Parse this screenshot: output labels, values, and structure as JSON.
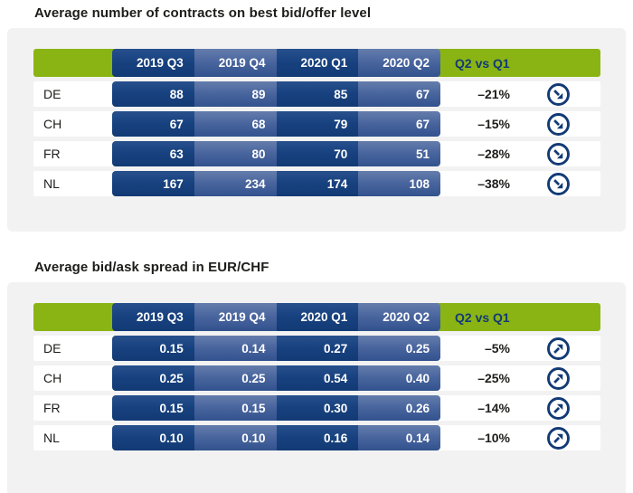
{
  "colors": {
    "accent_green": "#8ab414",
    "navy": "#123a75",
    "cell_dark_top": "#27508d",
    "cell_dark_bottom": "#123a75",
    "cell_light_top": "#647dac",
    "cell_light_bottom": "#32528e",
    "card_background": "#f2f2f2",
    "row_background": "#ffffff",
    "text": "#1d1d1b"
  },
  "chart_data": [
    {
      "type": "table",
      "title": "Average number of contracts on best bid/offer level",
      "columns": [
        "2019 Q3",
        "2019 Q4",
        "2020 Q1",
        "2020 Q2"
      ],
      "compare_label": "Q2 vs Q1",
      "rows": [
        {
          "label": "DE",
          "values": [
            "88",
            "89",
            "85",
            "67"
          ],
          "change": "–21%",
          "trend": "down-right"
        },
        {
          "label": "CH",
          "values": [
            "67",
            "68",
            "79",
            "67"
          ],
          "change": "–15%",
          "trend": "down-right"
        },
        {
          "label": "FR",
          "values": [
            "63",
            "80",
            "70",
            "51"
          ],
          "change": "–28%",
          "trend": "down-right"
        },
        {
          "label": "NL",
          "values": [
            "167",
            "234",
            "174",
            "108"
          ],
          "change": "–38%",
          "trend": "down-right"
        }
      ]
    },
    {
      "type": "table",
      "title": "Average bid/ask spread in EUR/CHF",
      "columns": [
        "2019 Q3",
        "2019 Q4",
        "2020 Q1",
        "2020 Q2"
      ],
      "compare_label": "Q2 vs Q1",
      "rows": [
        {
          "label": "DE",
          "values": [
            "0.15",
            "0.14",
            "0.27",
            "0.25"
          ],
          "change": "–5%",
          "trend": "up-right"
        },
        {
          "label": "CH",
          "values": [
            "0.25",
            "0.25",
            "0.54",
            "0.40"
          ],
          "change": "–25%",
          "trend": "up-right"
        },
        {
          "label": "FR",
          "values": [
            "0.15",
            "0.15",
            "0.30",
            "0.26"
          ],
          "change": "–14%",
          "trend": "up-right"
        },
        {
          "label": "NL",
          "values": [
            "0.10",
            "0.10",
            "0.16",
            "0.14"
          ],
          "change": "–10%",
          "trend": "up-right"
        }
      ]
    }
  ]
}
